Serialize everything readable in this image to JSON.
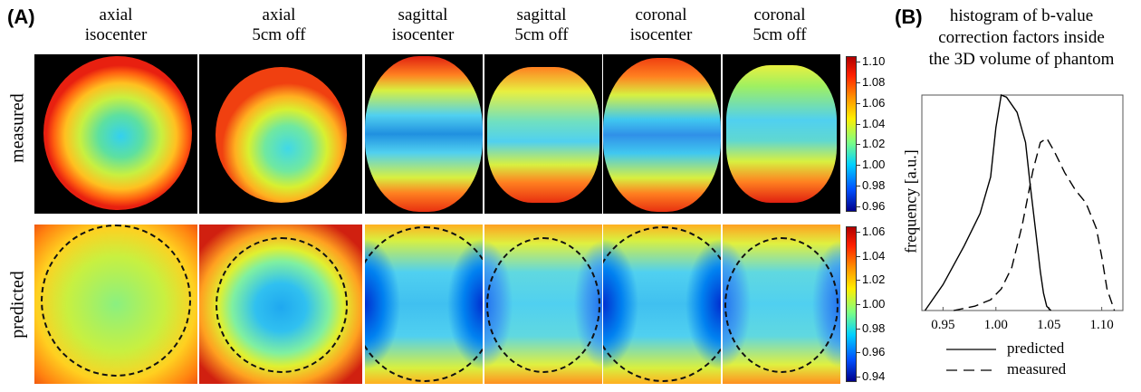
{
  "panel_a": {
    "letter": "(A)",
    "columns": [
      {
        "line1": "axial",
        "line2": "isocenter"
      },
      {
        "line1": "axial",
        "line2": "5cm off"
      },
      {
        "line1": "sagittal",
        "line2": "isocenter"
      },
      {
        "line1": "sagittal",
        "line2": "5cm off"
      },
      {
        "line1": "coronal",
        "line2": "isocenter"
      },
      {
        "line1": "coronal",
        "line2": "5cm off"
      }
    ],
    "rows": {
      "measured": "measured",
      "predicted": "predicted"
    },
    "colorbar_measured": [
      "1.10",
      "1.08",
      "1.06",
      "1.04",
      "1.02",
      "1.00",
      "0.98",
      "0.96"
    ],
    "colorbar_predicted": [
      "1.06",
      "1.04",
      "1.02",
      "1.00",
      "0.98",
      "0.96",
      "0.94"
    ],
    "colormap": "jet"
  },
  "panel_b": {
    "letter": "(B)",
    "title_line1": "histogram of b-value",
    "title_line2": "correction factors inside",
    "title_line3": "the 3D volume of phantom",
    "legend": {
      "predicted": "predicted",
      "measured": "measured"
    }
  },
  "chart_data": {
    "type": "line",
    "ylabel": "frequency [a.u.]",
    "xlabel": "",
    "x_ticks": [
      "0.95",
      "1.00",
      "1.05",
      "1.10"
    ],
    "xlim": [
      0.93,
      1.12
    ],
    "ylim": [
      0,
      1
    ],
    "series": [
      {
        "name": "predicted",
        "style": "solid",
        "x": [
          0.933,
          0.95,
          0.97,
          0.985,
          0.995,
          1.0,
          1.005,
          1.01,
          1.02,
          1.028,
          1.032,
          1.038,
          1.042,
          1.045,
          1.048,
          1.052
        ],
        "y": [
          0.0,
          0.12,
          0.3,
          0.45,
          0.62,
          0.85,
          1.0,
          0.99,
          0.92,
          0.78,
          0.6,
          0.35,
          0.18,
          0.08,
          0.02,
          0.0
        ]
      },
      {
        "name": "measured",
        "style": "dashed",
        "x": [
          0.96,
          0.98,
          0.995,
          1.005,
          1.015,
          1.025,
          1.035,
          1.042,
          1.048,
          1.055,
          1.065,
          1.075,
          1.085,
          1.095,
          1.1,
          1.105,
          1.112
        ],
        "y": [
          0.0,
          0.02,
          0.05,
          0.1,
          0.2,
          0.4,
          0.65,
          0.78,
          0.8,
          0.74,
          0.64,
          0.56,
          0.5,
          0.38,
          0.25,
          0.1,
          0.0
        ]
      }
    ]
  }
}
